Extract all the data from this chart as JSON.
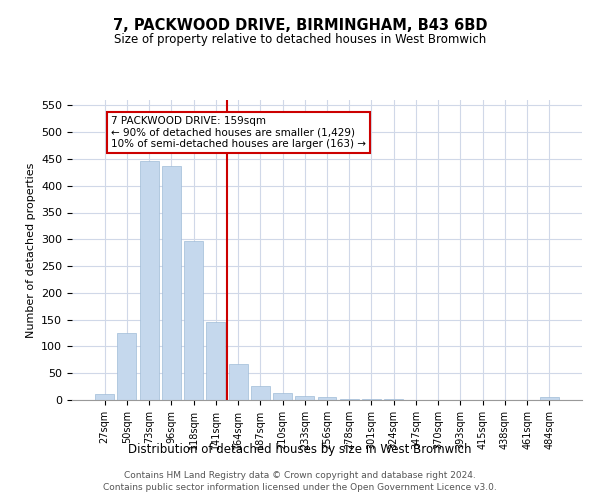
{
  "title": "7, PACKWOOD DRIVE, BIRMINGHAM, B43 6BD",
  "subtitle": "Size of property relative to detached houses in West Bromwich",
  "xlabel": "Distribution of detached houses by size in West Bromwich",
  "ylabel": "Number of detached properties",
  "bar_color": "#c5d8ed",
  "bar_edge_color": "#a0bcd8",
  "categories": [
    "27sqm",
    "50sqm",
    "73sqm",
    "96sqm",
    "118sqm",
    "141sqm",
    "164sqm",
    "187sqm",
    "210sqm",
    "233sqm",
    "256sqm",
    "278sqm",
    "301sqm",
    "324sqm",
    "347sqm",
    "370sqm",
    "393sqm",
    "415sqm",
    "438sqm",
    "461sqm",
    "484sqm"
  ],
  "values": [
    12,
    126,
    447,
    437,
    296,
    146,
    68,
    27,
    13,
    8,
    5,
    2,
    1,
    1,
    0,
    0,
    0,
    0,
    0,
    0,
    6
  ],
  "ylim": [
    0,
    560
  ],
  "yticks": [
    0,
    50,
    100,
    150,
    200,
    250,
    300,
    350,
    400,
    450,
    500,
    550
  ],
  "vline_index": 5,
  "vline_color": "#cc0000",
  "annotation_text": "7 PACKWOOD DRIVE: 159sqm\n← 90% of detached houses are smaller (1,429)\n10% of semi-detached houses are larger (163) →",
  "annotation_box_color": "#ffffff",
  "annotation_box_edgecolor": "#cc0000",
  "footer_line1": "Contains HM Land Registry data © Crown copyright and database right 2024.",
  "footer_line2": "Contains public sector information licensed under the Open Government Licence v3.0.",
  "background_color": "#ffffff",
  "grid_color": "#d0d8e8"
}
